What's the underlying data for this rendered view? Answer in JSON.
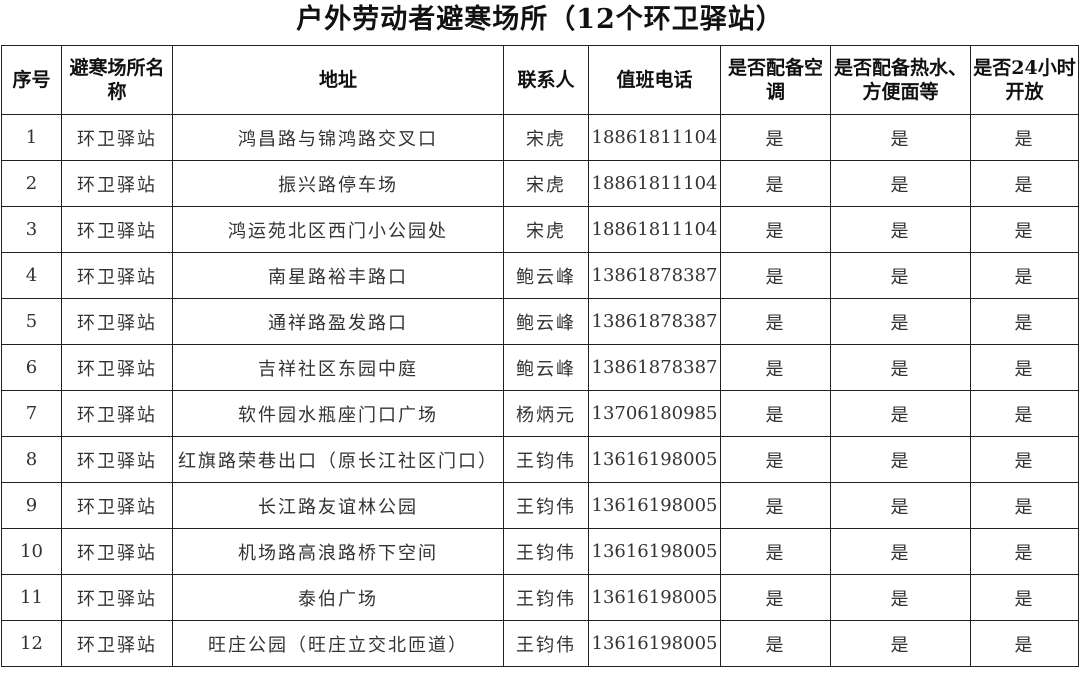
{
  "title": "户外劳动者避寒场所（12个环卫驿站）",
  "headers": [
    "序号",
    "避寒场所名称",
    "地址",
    "联系人",
    "值班电话",
    "是否配备空调",
    "是否配备热水、方便面等",
    "是否24小时开放"
  ],
  "rows": [
    [
      "1",
      "环卫驿站",
      "鸿昌路与锦鸿路交叉口",
      "宋虎",
      "18861811104",
      "是",
      "是",
      "是"
    ],
    [
      "2",
      "环卫驿站",
      "振兴路停车场",
      "宋虎",
      "18861811104",
      "是",
      "是",
      "是"
    ],
    [
      "3",
      "环卫驿站",
      "鸿运苑北区西门小公园处",
      "宋虎",
      "18861811104",
      "是",
      "是",
      "是"
    ],
    [
      "4",
      "环卫驿站",
      "南星路裕丰路口",
      "鲍云峰",
      "13861878387",
      "是",
      "是",
      "是"
    ],
    [
      "5",
      "环卫驿站",
      "通祥路盈发路口",
      "鲍云峰",
      "13861878387",
      "是",
      "是",
      "是"
    ],
    [
      "6",
      "环卫驿站",
      "吉祥社区东园中庭",
      "鲍云峰",
      "13861878387",
      "是",
      "是",
      "是"
    ],
    [
      "7",
      "环卫驿站",
      "软件园水瓶座门口广场",
      "杨炳元",
      "13706180985",
      "是",
      "是",
      "是"
    ],
    [
      "8",
      "环卫驿站",
      "红旗路荣巷出口（原长江社区门口）",
      "王钧伟",
      "13616198005",
      "是",
      "是",
      "是"
    ],
    [
      "9",
      "环卫驿站",
      "长江路友谊林公园",
      "王钧伟",
      "13616198005",
      "是",
      "是",
      "是"
    ],
    [
      "10",
      "环卫驿站",
      "机场路高浪路桥下空间",
      "王钧伟",
      "13616198005",
      "是",
      "是",
      "是"
    ],
    [
      "11",
      "环卫驿站",
      "泰伯广场",
      "王钧伟",
      "13616198005",
      "是",
      "是",
      "是"
    ],
    [
      "12",
      "环卫驿站",
      "旺庄公园（旺庄立交北匝道）",
      "王钧伟",
      "13616198005",
      "是",
      "是",
      "是"
    ]
  ]
}
